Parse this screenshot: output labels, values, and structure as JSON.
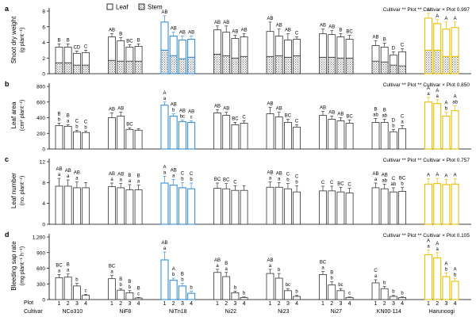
{
  "legend": [
    {
      "label": "Leaf",
      "pattern": "plain"
    },
    {
      "label": "Stem",
      "pattern": "stipple"
    }
  ],
  "plot_label": "Plot",
  "cultivar_label": "Cultivar",
  "plots": [
    "1",
    "2",
    "3",
    "4"
  ],
  "cultivars": [
    "NCo310",
    "NiF8",
    "NiTn18",
    "Ni22",
    "Ni23",
    "Ni27",
    "KN00-114",
    "Harunoogi"
  ],
  "colors": {
    "default": "#333333",
    "NiTn18": "#3b8fd6",
    "Harunoogi": "#e8c000"
  },
  "chart_data": [
    {
      "panel": "a",
      "type": "bar",
      "stacked": true,
      "ylabel": "Shoot dry weight",
      "yunit": "(g plant⁻¹)",
      "ylim": [
        0,
        8
      ],
      "yticks": [
        "0",
        "2",
        "4",
        "6",
        "8"
      ],
      "stats_text": "Cultivar ** Plot ** Cultivar × Plot 0.997",
      "series": [
        {
          "name": "Leaf",
          "values": [
            [
              2.0,
              2.0,
              1.5,
              1.6
            ],
            [
              3.0,
              2.6,
              1.8,
              1.9
            ],
            [
              3.6,
              2.5,
              2.4,
              2.3
            ],
            [
              3.1,
              3.0,
              2.5,
              2.5
            ],
            [
              3.2,
              2.5,
              2.2,
              2.1
            ],
            [
              3.0,
              2.9,
              2.7,
              2.4
            ],
            [
              2.0,
              1.9,
              1.3,
              1.8
            ],
            [
              4.1,
              3.4,
              3.5,
              3.7
            ]
          ]
        },
        {
          "name": "Stem",
          "values": [
            [
              1.4,
              1.4,
              1.1,
              1.1
            ],
            [
              1.7,
              1.6,
              1.6,
              1.6
            ],
            [
              3.0,
              2.3,
              1.9,
              2.1
            ],
            [
              2.5,
              2.3,
              2.0,
              2.2
            ],
            [
              2.2,
              2.3,
              2.1,
              2.3
            ],
            [
              2.1,
              2.1,
              2.0,
              2.0
            ],
            [
              1.6,
              1.5,
              1.1,
              1.0
            ],
            [
              3.0,
              3.0,
              2.2,
              2.2
            ]
          ]
        }
      ],
      "errors": [
        [
          0.4,
          0.4,
          0.3,
          0.3
        ],
        [
          0.4,
          0.4,
          0.3,
          0.3
        ],
        [
          0.8,
          0.5,
          0.5,
          0.4
        ],
        [
          0.5,
          0.8,
          0.4,
          0.4
        ],
        [
          1.2,
          0.9,
          0.8,
          0.3
        ],
        [
          0.6,
          0.5,
          0.4,
          0.5
        ],
        [
          0.6,
          0.5,
          0.4,
          0.4
        ],
        [
          0.6,
          0.5,
          0.9,
          0.7
        ]
      ],
      "letters": [
        [
          [
            "B"
          ],
          [
            "B"
          ],
          [
            "CD"
          ],
          [
            "C"
          ]
        ],
        [
          [
            "AB"
          ],
          [
            "B"
          ],
          [
            "BC"
          ],
          [
            "B"
          ]
        ],
        [
          [
            "AB"
          ],
          [
            "AB"
          ],
          [
            "AB"
          ],
          [
            "AB"
          ]
        ],
        [
          [
            "AB"
          ],
          [
            "AB"
          ],
          [
            "AB"
          ],
          [
            "AB"
          ]
        ],
        [
          [
            "AB"
          ],
          [
            "AB"
          ],
          [
            "AB"
          ],
          [
            "C"
          ]
        ],
        [
          [
            "AB"
          ],
          [
            "AB"
          ],
          [
            "B"
          ],
          [
            "BC"
          ]
        ],
        [
          [
            "AB"
          ],
          [
            "B"
          ],
          [
            "D"
          ],
          [
            "C"
          ]
        ],
        [
          [
            "A"
          ],
          [
            "A"
          ],
          [
            "A"
          ],
          [
            "A"
          ]
        ]
      ]
    },
    {
      "panel": "b",
      "type": "bar",
      "ylabel": "Leaf area",
      "yunit": "(cm² plant⁻¹)",
      "ylim": [
        0,
        800
      ],
      "yticks": [
        "0",
        "200",
        "400",
        "600",
        "800"
      ],
      "stats_text": "Cultivar ** Plot ** Cultivar × Plot 0.850",
      "values": [
        [
          300,
          290,
          220,
          210
        ],
        [
          400,
          420,
          250,
          240
        ],
        [
          560,
          420,
          350,
          340
        ],
        [
          460,
          430,
          310,
          330
        ],
        [
          450,
          410,
          340,
          280
        ],
        [
          430,
          380,
          360,
          330
        ],
        [
          340,
          340,
          220,
          260
        ],
        [
          600,
          580,
          420,
          490
        ]
      ],
      "errors": [
        [
          30,
          20,
          20,
          20
        ],
        [
          60,
          50,
          20,
          20
        ],
        [
          40,
          30,
          20,
          20
        ],
        [
          40,
          40,
          30,
          30
        ],
        [
          80,
          60,
          40,
          30
        ],
        [
          50,
          40,
          40,
          40
        ],
        [
          50,
          40,
          30,
          40
        ],
        [
          60,
          50,
          50,
          60
        ]
      ],
      "letters": [
        [
          [
            "B",
            "b"
          ],
          [
            "B",
            "a"
          ],
          [
            "C",
            "b"
          ],
          [
            "C",
            "b"
          ]
        ],
        [
          [
            "AB"
          ],
          [
            "AB"
          ],
          [
            "BC"
          ],
          []
        ],
        [
          [
            "A",
            "a"
          ],
          [
            "AB",
            "b"
          ],
          [
            "AB",
            "bc"
          ],
          [
            "AB",
            "c"
          ]
        ],
        [
          [
            "AB"
          ],
          [
            "AB"
          ],
          [
            "BC"
          ],
          [
            "C"
          ]
        ],
        [
          [
            "AB"
          ],
          [
            "AB"
          ],
          [
            "BC"
          ],
          [
            "C"
          ]
        ],
        [
          [
            "AB"
          ],
          [
            "AB"
          ],
          [
            "AB"
          ],
          [
            "BC"
          ]
        ],
        [
          [
            "B",
            "ab"
          ],
          [
            "B",
            "ab"
          ],
          [
            "D",
            "b"
          ],
          [
            "C",
            "a"
          ]
        ],
        [
          [
            "A",
            "a"
          ],
          [
            "A",
            "a"
          ],
          [
            "A",
            "b"
          ],
          [
            "A",
            "ab"
          ]
        ]
      ]
    },
    {
      "panel": "c",
      "type": "bar",
      "ylabel": "Leaf number",
      "yunit": "(no. plant⁻¹)",
      "ylim": [
        0,
        12
      ],
      "yticks": [
        "0",
        "4",
        "8",
        "12"
      ],
      "stats_text": "Cultivar ** Plot ** Cultivar × Plot 0.757",
      "values": [
        [
          7.3,
          7.3,
          7.0,
          7.0
        ],
        [
          7.2,
          7.0,
          6.6,
          6.6
        ],
        [
          7.9,
          7.5,
          7.0,
          6.8
        ],
        [
          6.9,
          6.8,
          6.5,
          6.5
        ],
        [
          7.1,
          7.1,
          6.8,
          6.2
        ],
        [
          6.4,
          6.4,
          6.2,
          6.0
        ],
        [
          7.0,
          6.8,
          6.2,
          6.3
        ],
        [
          7.7,
          7.8,
          7.6,
          7.7
        ]
      ],
      "errors": [
        [
          1.5,
          1.2,
          1.1,
          1.0
        ],
        [
          0.7,
          0.8,
          1.0,
          0.9
        ],
        [
          1.3,
          1.1,
          1.0,
          1.1
        ],
        [
          1.0,
          1.0,
          0.9,
          0.9
        ],
        [
          1.0,
          0.9,
          1.0,
          1.2
        ],
        [
          0.9,
          0.9,
          0.9,
          0.9
        ],
        [
          0.9,
          0.9,
          0.8,
          0.8
        ],
        [
          1.0,
          1.0,
          1.0,
          1.0
        ]
      ],
      "letters": [
        [
          [
            "AB",
            "a"
          ],
          [
            "AB",
            "a"
          ],
          [
            "AB",
            "a"
          ],
          []
        ],
        [
          [
            "AB",
            "a"
          ],
          [
            "AB",
            "a"
          ],
          [
            "B",
            "a"
          ],
          [
            "B",
            "a"
          ]
        ],
        [
          [
            "A",
            "a"
          ],
          [
            "AB",
            "a"
          ],
          [
            "C",
            "b"
          ],
          [
            "C",
            "b"
          ]
        ],
        [
          [
            "BC"
          ],
          [
            "BC"
          ],
          [
            "C"
          ],
          []
        ],
        [
          [
            "AB",
            "a"
          ],
          [
            "AB",
            "a"
          ],
          [
            "C",
            "b"
          ],
          [
            "C",
            "b"
          ]
        ],
        [
          [
            "C"
          ],
          [
            "C"
          ],
          [
            "BC"
          ],
          [
            "C"
          ]
        ],
        [
          [
            "AB",
            "a"
          ],
          [
            "AB",
            "ab"
          ],
          [
            "C",
            "ab"
          ],
          [
            "BC",
            "b"
          ]
        ],
        [
          [
            "A"
          ],
          [
            "A"
          ],
          [
            "A"
          ],
          [
            "A"
          ]
        ]
      ]
    },
    {
      "panel": "d",
      "type": "bar",
      "ylabel": "Bleeding sap rate",
      "yunit": "(mg plant⁻¹ h⁻¹)",
      "ylim": [
        0,
        1200
      ],
      "yticks": [
        "0",
        "300",
        "600",
        "900",
        "1,200"
      ],
      "stats_text": "Cultivar ** Plot ** Cultivar × Plot 0.105",
      "values": [
        [
          420,
          430,
          260,
          80
        ],
        [
          400,
          180,
          130,
          30
        ],
        [
          760,
          370,
          260,
          120
        ],
        [
          520,
          440,
          130,
          40
        ],
        [
          500,
          410,
          170,
          60
        ],
        [
          480,
          280,
          170,
          40
        ],
        [
          320,
          210,
          60,
          40
        ],
        [
          860,
          800,
          440,
          350
        ]
      ],
      "errors": [
        [
          60,
          60,
          50,
          20
        ],
        [
          60,
          30,
          40,
          10
        ],
        [
          150,
          40,
          50,
          40
        ],
        [
          60,
          80,
          30,
          10
        ],
        [
          80,
          90,
          40,
          20
        ],
        [
          60,
          60,
          40,
          10
        ],
        [
          60,
          40,
          20,
          10
        ],
        [
          90,
          100,
          70,
          50
        ]
      ],
      "letters": [
        [
          [
            "BC",
            "a"
          ],
          [
            "B",
            "a"
          ],
          [
            "b"
          ],
          [
            "c"
          ]
        ],
        [
          [
            "BC",
            "a"
          ],
          [
            "B",
            "b"
          ],
          [
            "B",
            "b"
          ],
          [
            "B",
            "c"
          ]
        ],
        [
          [
            "AB",
            "a"
          ],
          [
            "A",
            "b"
          ],
          [
            "B",
            "b"
          ],
          [
            "b"
          ]
        ],
        [
          [
            "AB",
            "a"
          ],
          [
            "B",
            "a"
          ],
          [
            "b"
          ],
          [
            "b"
          ]
        ],
        [
          [
            "AB",
            "a"
          ],
          [
            "b"
          ],
          [
            "bc"
          ],
          [
            "b"
          ]
        ],
        [
          [
            "BC",
            "a"
          ],
          [
            "B",
            "b"
          ],
          [
            "bc"
          ],
          [
            "c"
          ]
        ],
        [
          [
            "C",
            "a"
          ],
          [
            "b"
          ],
          [
            "b"
          ],
          [
            "b"
          ]
        ],
        [
          [
            "A",
            "a"
          ],
          [
            "A",
            "a"
          ],
          [
            "A",
            "b"
          ],
          [
            "A",
            "b"
          ]
        ]
      ]
    }
  ]
}
